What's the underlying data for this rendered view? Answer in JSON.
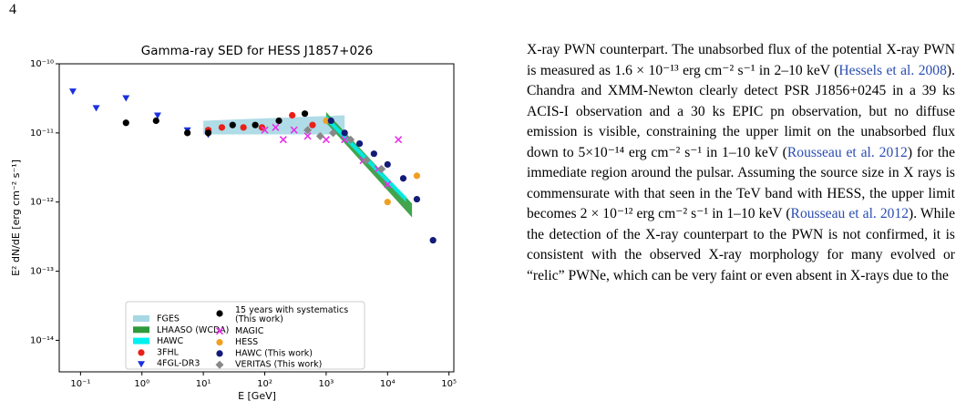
{
  "page_number": "4",
  "chart_data": {
    "type": "scatter",
    "title": "Gamma-ray SED for HESS J1857+026",
    "xlabel": "E [GeV]",
    "ylabel": "E² dN/dE [erg cm⁻² s⁻¹]",
    "log_x": true,
    "log_y": true,
    "xlim": [
      0.045,
      120000
    ],
    "ylim": [
      3.5e-15,
      1e-10
    ],
    "xticks": [
      {
        "value": 0.1,
        "label": "10⁻¹"
      },
      {
        "value": 1,
        "label": "10⁰"
      },
      {
        "value": 10,
        "label": "10¹"
      },
      {
        "value": 100,
        "label": "10²"
      },
      {
        "value": 1000,
        "label": "10³"
      },
      {
        "value": 10000,
        "label": "10⁴"
      },
      {
        "value": 100000,
        "label": "10⁵"
      }
    ],
    "yticks": [
      {
        "value": 1e-10,
        "label": "10⁻¹⁰"
      },
      {
        "value": 1e-11,
        "label": "10⁻¹¹"
      },
      {
        "value": 1e-12,
        "label": "10⁻¹²"
      },
      {
        "value": 1e-13,
        "label": "10⁻¹³"
      },
      {
        "value": 1e-14,
        "label": "10⁻¹⁴"
      }
    ],
    "series": [
      {
        "name": "FGES",
        "color": "#a6d8e4",
        "x": [
          10,
          2000
        ],
        "upper": [
          1.5e-11,
          1.8e-11
        ],
        "lower": [
          9.5e-12,
          9.5e-12
        ]
      },
      {
        "name": "LHAASO (WCDA)",
        "color": "#2e9a3a",
        "x": [
          1000,
          25000
        ],
        "upper": [
          2e-11,
          9.5e-13
        ],
        "lower": [
          1.4e-11,
          6e-13
        ]
      },
      {
        "name": "HAWC",
        "color": "#00f0f0",
        "x": [
          1000,
          20000
        ],
        "upper": [
          1.8e-11,
          1.2e-12
        ],
        "lower": [
          1.5e-11,
          1e-12
        ]
      },
      {
        "name": "3FHL",
        "color": "#e8201a",
        "marker": "o",
        "x": [
          12,
          20,
          45,
          90,
          280,
          600
        ],
        "y": [
          1.1e-11,
          1.2e-11,
          1.2e-11,
          1.2e-11,
          1.8e-11,
          1.3e-11
        ]
      },
      {
        "name": "4FGL-DR3",
        "color": "#1a30e0",
        "marker": "v",
        "x": [
          0.075,
          0.18,
          0.55,
          1.8,
          5.5,
          12
        ],
        "y": [
          4e-11,
          2.3e-11,
          3.2e-11,
          1.8e-11,
          1.1e-11,
          9.5e-12
        ]
      },
      {
        "name": "15 years with systematics\n(This work)",
        "color": "#000000",
        "marker": "o",
        "x": [
          0.55,
          1.7,
          5.5,
          12,
          30,
          70,
          170,
          450
        ],
        "y": [
          1.4e-11,
          1.5e-11,
          1e-11,
          1e-11,
          1.3e-11,
          1.3e-11,
          1.5e-11,
          1.9e-11
        ]
      },
      {
        "name": "MAGIC",
        "color": "#e830e8",
        "marker": "x",
        "x": [
          100,
          150,
          200,
          300,
          500,
          1000,
          2000,
          4000,
          7000,
          10000,
          15000
        ],
        "y": [
          1.1e-11,
          1.2e-11,
          8e-12,
          1.1e-11,
          9e-12,
          8e-12,
          8e-12,
          4e-12,
          3e-12,
          1.8e-12,
          8e-12
        ]
      },
      {
        "name": "HESS",
        "color": "#f0a020",
        "marker": "o",
        "x": [
          1000,
          10000,
          30000
        ],
        "y": [
          1.5e-11,
          1e-12,
          2.4e-12
        ]
      },
      {
        "name": "HAWC (This work)",
        "color": "#141a78",
        "marker": "o",
        "x": [
          1200,
          2000,
          3500,
          6000,
          10000,
          18000,
          30000,
          55000
        ],
        "y": [
          1.5e-11,
          1e-11,
          7e-12,
          5e-12,
          3.5e-12,
          2.2e-12,
          1.1e-12,
          2.8e-13
        ]
      },
      {
        "name": "VERITAS (This work)",
        "color": "#888888",
        "marker": "d",
        "x": [
          500,
          800,
          1300,
          2500,
          4500,
          8000
        ],
        "y": [
          1.1e-11,
          9e-12,
          1e-11,
          8e-12,
          4e-12,
          3e-12
        ]
      }
    ]
  },
  "text": {
    "parts": [
      "X-ray PWN counterpart. The unabsorbed flux of the potential X-ray PWN is measured as 1.6 × 10⁻¹³ erg cm⁻² s⁻¹ in 2–10 keV (",
      "Hessels et al. 2008",
      "). Chandra and XMM-Newton clearly detect PSR J1856+0245 in a 39 ks ACIS-I observation and a 30 ks EPIC pn observation, but no diffuse emission is visible, constraining the upper limit on the unabsorbed flux down to 5×10⁻¹⁴ erg cm⁻² s⁻¹ in 1–10 keV (",
      "Rousseau et al. 2012",
      ") for the immediate region around the pulsar. Assuming the source size in X rays is commensurate with that seen in the TeV band with HESS, the upper limit becomes 2 × 10⁻¹² erg cm⁻² s⁻¹ in 1–10 keV (",
      "Rousseau et al. 2012",
      "). While the detection of the X-ray counterpart to the PWN is not confirmed, it is consistent with the observed X-ray morphology for many evolved or “relic” PWNe, which can be very faint or even absent in X-rays due to the"
    ]
  }
}
